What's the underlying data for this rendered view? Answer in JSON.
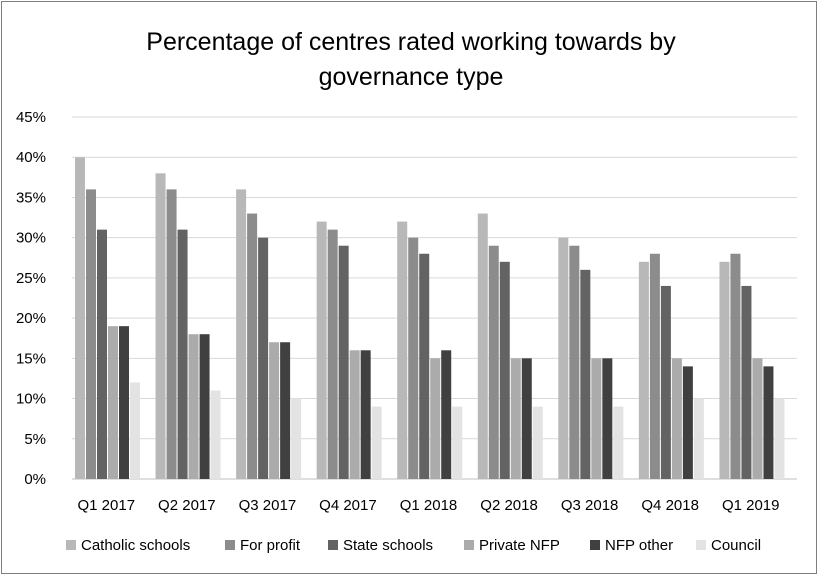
{
  "chart_data": {
    "type": "bar",
    "title_lines": [
      "Percentage of centres rated working towards by",
      "governance type"
    ],
    "categories": [
      "Q1 2017",
      "Q2 2017",
      "Q3 2017",
      "Q4 2017",
      "Q1 2018",
      "Q2 2018",
      "Q3 2018",
      "Q4 2018",
      "Q1 2019"
    ],
    "series": [
      {
        "name": "Catholic schools",
        "color": "#b8b8b8",
        "values": [
          40,
          38,
          36,
          32,
          32,
          33,
          30,
          27,
          27
        ]
      },
      {
        "name": "For profit",
        "color": "#8c8c8c",
        "values": [
          36,
          36,
          33,
          31,
          30,
          29,
          29,
          28,
          28
        ]
      },
      {
        "name": "State schools",
        "color": "#636363",
        "values": [
          31,
          31,
          30,
          29,
          28,
          27,
          26,
          24,
          24
        ]
      },
      {
        "name": "Private NFP",
        "color": "#ababab",
        "values": [
          19,
          18,
          17,
          16,
          15,
          15,
          15,
          15,
          15
        ]
      },
      {
        "name": "NFP other",
        "color": "#404040",
        "values": [
          19,
          18,
          17,
          16,
          16,
          15,
          15,
          14,
          14
        ]
      },
      {
        "name": "Council",
        "color": "#e3e3e3",
        "values": [
          12,
          11,
          10,
          9,
          9,
          9,
          9,
          10,
          10
        ]
      }
    ],
    "ylim": [
      0,
      45
    ],
    "yticks": [
      0,
      5,
      10,
      15,
      20,
      25,
      30,
      35,
      40,
      45
    ],
    "ytick_labels": [
      "0%",
      "5%",
      "10%",
      "15%",
      "20%",
      "25%",
      "30%",
      "35%",
      "40%",
      "45%"
    ],
    "xlabel": "",
    "ylabel": "",
    "grid": true,
    "legend_position": "bottom"
  }
}
